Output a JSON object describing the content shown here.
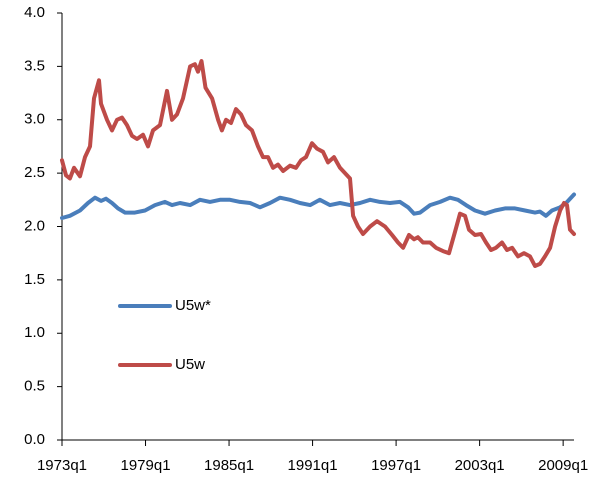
{
  "chart_data": {
    "type": "line",
    "xlim": [
      1973,
      2009.78
    ],
    "xticks": [
      {
        "value": 1973,
        "label": "1973q1"
      },
      {
        "value": 1979,
        "label": "1979q1"
      },
      {
        "value": 1985,
        "label": "1985q1"
      },
      {
        "value": 1991,
        "label": "1991q1"
      },
      {
        "value": 1997,
        "label": "1997q1"
      },
      {
        "value": 2003,
        "label": "2003q1"
      },
      {
        "value": 2009,
        "label": "2009q1"
      }
    ],
    "ylim": [
      0,
      4
    ],
    "yticks": [
      {
        "value": 0,
        "label": "0.0"
      },
      {
        "value": 0.5,
        "label": "0.5"
      },
      {
        "value": 1,
        "label": "1.0"
      },
      {
        "value": 1.5,
        "label": "1.5"
      },
      {
        "value": 2,
        "label": "2.0"
      },
      {
        "value": 2.5,
        "label": "2.5"
      },
      {
        "value": 3,
        "label": "3.0"
      },
      {
        "value": 3.5,
        "label": "3.5"
      },
      {
        "value": 4,
        "label": "4.0"
      }
    ],
    "grid": false,
    "legend": "middle-left",
    "series": [
      {
        "name": "U5w*",
        "color": "#4a7ebb",
        "x": [
          1973.0,
          1973.57,
          1974.29,
          1974.87,
          1975.37,
          1975.8,
          1976.16,
          1976.59,
          1977.02,
          1977.53,
          1978.24,
          1978.96,
          1979.68,
          1980.4,
          1980.9,
          1981.48,
          1982.2,
          1982.91,
          1983.63,
          1984.35,
          1985.07,
          1985.79,
          1986.51,
          1987.22,
          1987.94,
          1988.66,
          1989.38,
          1990.1,
          1990.82,
          1991.53,
          1992.25,
          1992.97,
          1993.69,
          1994.41,
          1995.13,
          1995.84,
          1996.56,
          1997.28,
          1997.86,
          1998.29,
          1998.72,
          1999.44,
          2000.16,
          2000.87,
          2001.45,
          2002.02,
          2002.67,
          2003.39,
          2004.11,
          2004.82,
          2005.54,
          2006.26,
          2006.98,
          2007.34,
          2007.77,
          2008.2,
          2008.78,
          2009.21,
          2009.78
        ],
        "values": [
          2.08,
          2.1,
          2.15,
          2.22,
          2.27,
          2.24,
          2.26,
          2.22,
          2.17,
          2.13,
          2.13,
          2.15,
          2.2,
          2.23,
          2.2,
          2.22,
          2.2,
          2.25,
          2.23,
          2.25,
          2.25,
          2.23,
          2.22,
          2.18,
          2.22,
          2.27,
          2.25,
          2.22,
          2.2,
          2.25,
          2.2,
          2.22,
          2.2,
          2.22,
          2.25,
          2.23,
          2.22,
          2.23,
          2.18,
          2.12,
          2.13,
          2.2,
          2.23,
          2.27,
          2.25,
          2.2,
          2.15,
          2.12,
          2.15,
          2.17,
          2.17,
          2.15,
          2.13,
          2.14,
          2.1,
          2.15,
          2.18,
          2.22,
          2.3
        ]
      },
      {
        "name": "U5w",
        "color": "#be4b48",
        "x": [
          1973.0,
          1973.29,
          1973.57,
          1973.86,
          1974.29,
          1974.65,
          1975.01,
          1975.3,
          1975.66,
          1975.8,
          1976.23,
          1976.59,
          1976.95,
          1977.31,
          1977.67,
          1978.03,
          1978.39,
          1978.82,
          1979.18,
          1979.54,
          1980.04,
          1980.54,
          1980.9,
          1981.26,
          1981.69,
          1982.2,
          1982.55,
          1982.77,
          1983.02,
          1983.31,
          1983.78,
          1984.21,
          1984.49,
          1984.78,
          1985.14,
          1985.5,
          1985.86,
          1986.22,
          1986.65,
          1987.08,
          1987.44,
          1987.8,
          1988.16,
          1988.52,
          1988.88,
          1989.38,
          1989.81,
          1990.17,
          1990.53,
          1990.96,
          1991.32,
          1991.75,
          1992.11,
          1992.54,
          1992.97,
          1993.33,
          1993.69,
          1993.91,
          1994.26,
          1994.62,
          1995.13,
          1995.63,
          1996.2,
          1996.71,
          1997.14,
          1997.5,
          1997.93,
          1998.29,
          1998.57,
          1998.93,
          1999.44,
          1999.87,
          2000.37,
          2000.8,
          2001.23,
          2001.59,
          2001.95,
          2002.24,
          2002.67,
          2003.1,
          2003.46,
          2003.82,
          2004.18,
          2004.61,
          2004.97,
          2005.33,
          2005.76,
          2006.19,
          2006.62,
          2006.98,
          2007.34,
          2007.7,
          2008.06,
          2008.42,
          2008.78,
          2009.06,
          2009.28,
          2009.49,
          2009.78
        ],
        "values": [
          2.62,
          2.48,
          2.45,
          2.55,
          2.47,
          2.65,
          2.75,
          3.2,
          3.37,
          3.15,
          3.0,
          2.9,
          3.0,
          3.02,
          2.95,
          2.85,
          2.82,
          2.86,
          2.75,
          2.9,
          2.95,
          3.27,
          3.0,
          3.05,
          3.2,
          3.5,
          3.52,
          3.45,
          3.55,
          3.3,
          3.2,
          3.0,
          2.9,
          3.0,
          2.97,
          3.1,
          3.05,
          2.95,
          2.9,
          2.75,
          2.65,
          2.65,
          2.55,
          2.58,
          2.52,
          2.57,
          2.55,
          2.62,
          2.65,
          2.78,
          2.73,
          2.7,
          2.6,
          2.65,
          2.55,
          2.5,
          2.45,
          2.1,
          2.0,
          1.93,
          2.0,
          2.05,
          2.0,
          1.92,
          1.85,
          1.8,
          1.92,
          1.88,
          1.9,
          1.85,
          1.85,
          1.8,
          1.77,
          1.75,
          1.95,
          2.12,
          2.1,
          1.97,
          1.92,
          1.93,
          1.85,
          1.78,
          1.8,
          1.85,
          1.78,
          1.8,
          1.72,
          1.75,
          1.72,
          1.63,
          1.65,
          1.72,
          1.8,
          2.0,
          2.15,
          2.22,
          2.2,
          1.97,
          1.93
        ]
      }
    ]
  }
}
